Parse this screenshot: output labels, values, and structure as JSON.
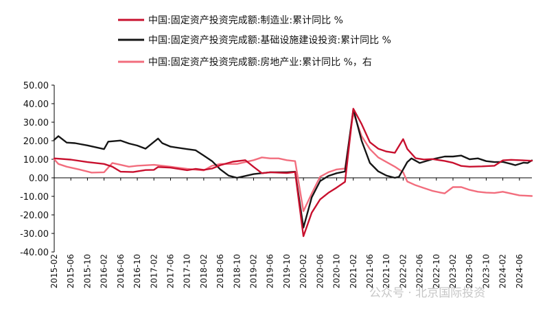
{
  "chart_data": {
    "type": "line",
    "x_start": "2015-02",
    "x_end": "2024-09",
    "xtick_labels": [
      "2015-02",
      "2015-06",
      "2015-10",
      "2016-02",
      "2016-06",
      "2016-10",
      "2017-02",
      "2017-06",
      "2017-10",
      "2018-02",
      "2018-06",
      "2018-10",
      "2019-02",
      "2019-06",
      "2019-10",
      "2020-02",
      "2020-06",
      "2020-10",
      "2021-02",
      "2021-06",
      "2021-10",
      "2022-02",
      "2022-06",
      "2022-10",
      "2023-02",
      "2023-06",
      "2023-10",
      "2024-02",
      "2024-06"
    ],
    "ylim": [
      -40,
      50
    ],
    "yticks": [
      "50.00",
      "40.00",
      "30.00",
      "20.00",
      "10.00",
      "0.00",
      "-10.00",
      "-20.00",
      "-30.00",
      "-40.00"
    ],
    "legend_position": "top-left",
    "series": [
      {
        "name": "中国:固定资产投资完成额:制造业:累计同比 %",
        "color": "#c8102e",
        "points": [
          [
            "2015-02",
            10.5
          ],
          [
            "2015-06",
            9.8
          ],
          [
            "2015-10",
            8.5
          ],
          [
            "2016-02",
            7.5
          ],
          [
            "2016-04",
            6.0
          ],
          [
            "2016-06",
            3.3
          ],
          [
            "2016-09",
            3.1
          ],
          [
            "2016-12",
            4.2
          ],
          [
            "2017-02",
            4.3
          ],
          [
            "2017-03",
            5.8
          ],
          [
            "2017-06",
            5.5
          ],
          [
            "2017-10",
            4.1
          ],
          [
            "2017-12",
            4.8
          ],
          [
            "2018-02",
            4.3
          ],
          [
            "2018-04",
            5.0
          ],
          [
            "2018-06",
            6.8
          ],
          [
            "2018-09",
            8.7
          ],
          [
            "2018-12",
            9.5
          ],
          [
            "2019-02",
            5.9
          ],
          [
            "2019-04",
            2.5
          ],
          [
            "2019-06",
            3.0
          ],
          [
            "2019-10",
            2.6
          ],
          [
            "2019-12",
            3.1
          ],
          [
            "2020-02",
            -31.5
          ],
          [
            "2020-04",
            -18.8
          ],
          [
            "2020-06",
            -11.7
          ],
          [
            "2020-08",
            -8.1
          ],
          [
            "2020-10",
            -5.3
          ],
          [
            "2020-12",
            -2.2
          ],
          [
            "2021-02",
            37.3
          ],
          [
            "2021-04",
            29.0
          ],
          [
            "2021-06",
            19.2
          ],
          [
            "2021-08",
            15.7
          ],
          [
            "2021-10",
            14.2
          ],
          [
            "2021-12",
            13.5
          ],
          [
            "2022-02",
            20.9
          ],
          [
            "2022-03",
            15.6
          ],
          [
            "2022-05",
            10.6
          ],
          [
            "2022-07",
            9.9
          ],
          [
            "2022-09",
            10.1
          ],
          [
            "2022-12",
            9.1
          ],
          [
            "2023-02",
            8.1
          ],
          [
            "2023-04",
            6.4
          ],
          [
            "2023-06",
            6.0
          ],
          [
            "2023-09",
            6.2
          ],
          [
            "2023-12",
            6.5
          ],
          [
            "2024-02",
            9.4
          ],
          [
            "2024-04",
            9.7
          ],
          [
            "2024-06",
            9.5
          ],
          [
            "2024-09",
            9.2
          ]
        ]
      },
      {
        "name": "中国:固定资产投资完成额:基础设施建设投资:累计同比 %",
        "color": "#151515",
        "points": [
          [
            "2015-02",
            20.5
          ],
          [
            "2015-03",
            22.5
          ],
          [
            "2015-05",
            19.0
          ],
          [
            "2015-07",
            18.7
          ],
          [
            "2015-10",
            17.5
          ],
          [
            "2016-02",
            15.5
          ],
          [
            "2016-03",
            19.5
          ],
          [
            "2016-06",
            20.1
          ],
          [
            "2016-08",
            18.5
          ],
          [
            "2016-10",
            17.4
          ],
          [
            "2016-12",
            15.7
          ],
          [
            "2017-03",
            21.2
          ],
          [
            "2017-04",
            18.7
          ],
          [
            "2017-06",
            16.8
          ],
          [
            "2017-10",
            15.5
          ],
          [
            "2017-12",
            14.9
          ],
          [
            "2018-02",
            12.0
          ],
          [
            "2018-04",
            9.0
          ],
          [
            "2018-06",
            4.5
          ],
          [
            "2018-08",
            1.2
          ],
          [
            "2018-10",
            0.0
          ],
          [
            "2018-12",
            1.0
          ],
          [
            "2019-02",
            2.0
          ],
          [
            "2019-06",
            3.0
          ],
          [
            "2019-10",
            3.0
          ],
          [
            "2019-12",
            3.3
          ],
          [
            "2020-02",
            -26.9
          ],
          [
            "2020-04",
            -10.5
          ],
          [
            "2020-06",
            -1.8
          ],
          [
            "2020-08",
            1.0
          ],
          [
            "2020-10",
            2.5
          ],
          [
            "2020-12",
            3.4
          ],
          [
            "2021-02",
            37.0
          ],
          [
            "2021-04",
            20.0
          ],
          [
            "2021-06",
            8.0
          ],
          [
            "2021-08",
            3.5
          ],
          [
            "2021-10",
            1.2
          ],
          [
            "2021-12",
            0.0
          ],
          [
            "2022-01",
            0.5
          ],
          [
            "2022-03",
            8.5
          ],
          [
            "2022-04",
            10.5
          ],
          [
            "2022-06",
            8.0
          ],
          [
            "2022-09",
            10.0
          ],
          [
            "2022-12",
            11.5
          ],
          [
            "2023-02",
            11.5
          ],
          [
            "2023-04",
            12.0
          ],
          [
            "2023-06",
            10.0
          ],
          [
            "2023-08",
            10.5
          ],
          [
            "2023-10",
            9.0
          ],
          [
            "2023-12",
            8.5
          ],
          [
            "2024-02",
            8.6
          ],
          [
            "2024-04",
            7.5
          ],
          [
            "2024-05",
            6.8
          ],
          [
            "2024-07",
            8.2
          ],
          [
            "2024-08",
            8.0
          ],
          [
            "2024-09",
            9.4
          ]
        ]
      },
      {
        "name": "中国:固定资产投资完成额:房地产业:累计同比 %，右",
        "color": "#f26d7d",
        "points": [
          [
            "2015-02",
            10.0
          ],
          [
            "2015-03",
            7.5
          ],
          [
            "2015-05",
            6.0
          ],
          [
            "2015-08",
            4.5
          ],
          [
            "2015-11",
            2.8
          ],
          [
            "2016-02",
            3.0
          ],
          [
            "2016-04",
            8.0
          ],
          [
            "2016-06",
            7.0
          ],
          [
            "2016-08",
            6.0
          ],
          [
            "2016-10",
            6.5
          ],
          [
            "2017-02",
            7.0
          ],
          [
            "2017-06",
            6.0
          ],
          [
            "2017-10",
            4.8
          ],
          [
            "2018-02",
            4.0
          ],
          [
            "2018-04",
            6.5
          ],
          [
            "2018-06",
            7.5
          ],
          [
            "2018-10",
            7.5
          ],
          [
            "2018-12",
            8.5
          ],
          [
            "2019-02",
            9.5
          ],
          [
            "2019-04",
            11.0
          ],
          [
            "2019-06",
            10.5
          ],
          [
            "2019-08",
            10.5
          ],
          [
            "2019-10",
            9.5
          ],
          [
            "2019-12",
            9.0
          ],
          [
            "2020-02",
            -18.0
          ],
          [
            "2020-04",
            -8.5
          ],
          [
            "2020-06",
            0.5
          ],
          [
            "2020-08",
            3.0
          ],
          [
            "2020-10",
            4.5
          ],
          [
            "2020-12",
            5.0
          ],
          [
            "2021-02",
            35.2
          ],
          [
            "2021-04",
            22.5
          ],
          [
            "2021-06",
            15.5
          ],
          [
            "2021-08",
            11.0
          ],
          [
            "2021-10",
            8.5
          ],
          [
            "2021-12",
            6.0
          ],
          [
            "2022-02",
            3.0
          ],
          [
            "2022-03",
            -2.0
          ],
          [
            "2022-05",
            -4.0
          ],
          [
            "2022-07",
            -5.5
          ],
          [
            "2022-09",
            -7.0
          ],
          [
            "2022-11",
            -8.0
          ],
          [
            "2022-12",
            -8.4
          ],
          [
            "2023-02",
            -5.0
          ],
          [
            "2023-04",
            -5.0
          ],
          [
            "2023-06",
            -6.5
          ],
          [
            "2023-08",
            -7.5
          ],
          [
            "2023-10",
            -8.0
          ],
          [
            "2023-12",
            -8.2
          ],
          [
            "2024-02",
            -7.5
          ],
          [
            "2024-04",
            -8.5
          ],
          [
            "2024-06",
            -9.5
          ],
          [
            "2024-09",
            -9.8
          ]
        ]
      }
    ]
  },
  "watermark": "公众号 · 北京国际投资"
}
